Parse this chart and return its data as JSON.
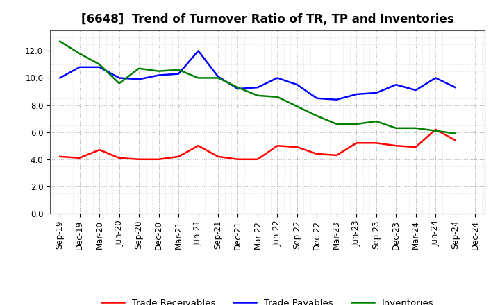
{
  "title": "[6648]  Trend of Turnover Ratio of TR, TP and Inventories",
  "x_labels": [
    "Sep-19",
    "Dec-19",
    "Mar-20",
    "Jun-20",
    "Sep-20",
    "Dec-20",
    "Mar-21",
    "Jun-21",
    "Sep-21",
    "Dec-21",
    "Mar-22",
    "Jun-22",
    "Sep-22",
    "Dec-22",
    "Mar-23",
    "Jun-23",
    "Sep-23",
    "Dec-23",
    "Mar-24",
    "Jun-24",
    "Sep-24",
    "Dec-24"
  ],
  "trade_receivables": [
    4.2,
    4.1,
    4.7,
    4.1,
    4.0,
    4.0,
    4.2,
    5.0,
    4.2,
    4.0,
    4.0,
    5.0,
    4.9,
    4.4,
    4.3,
    5.2,
    5.2,
    5.0,
    4.9,
    6.2,
    5.4,
    null
  ],
  "trade_payables": [
    10.0,
    10.8,
    10.8,
    10.0,
    9.9,
    10.2,
    10.3,
    12.0,
    10.1,
    9.2,
    9.3,
    10.0,
    9.5,
    8.5,
    8.4,
    8.8,
    8.9,
    9.5,
    9.1,
    10.0,
    9.3,
    null
  ],
  "inventories": [
    12.7,
    11.8,
    11.0,
    9.6,
    10.7,
    10.5,
    10.6,
    10.0,
    10.0,
    9.3,
    8.7,
    8.6,
    7.9,
    7.2,
    6.6,
    6.6,
    6.8,
    6.3,
    6.3,
    6.1,
    5.9,
    null
  ],
  "color_tr": "#ff0000",
  "color_tp": "#0000ff",
  "color_inv": "#008000",
  "ylim": [
    0.0,
    13.5
  ],
  "yticks": [
    0.0,
    2.0,
    4.0,
    6.0,
    8.0,
    10.0,
    12.0
  ],
  "legend_labels": [
    "Trade Receivables",
    "Trade Payables",
    "Inventories"
  ],
  "background_color": "#ffffff",
  "plot_bg_color": "#ffffff",
  "grid_color": "#aaaaaa",
  "linewidth": 1.8,
  "title_fontsize": 12,
  "label_fontsize": 8.5,
  "legend_fontsize": 9.5
}
